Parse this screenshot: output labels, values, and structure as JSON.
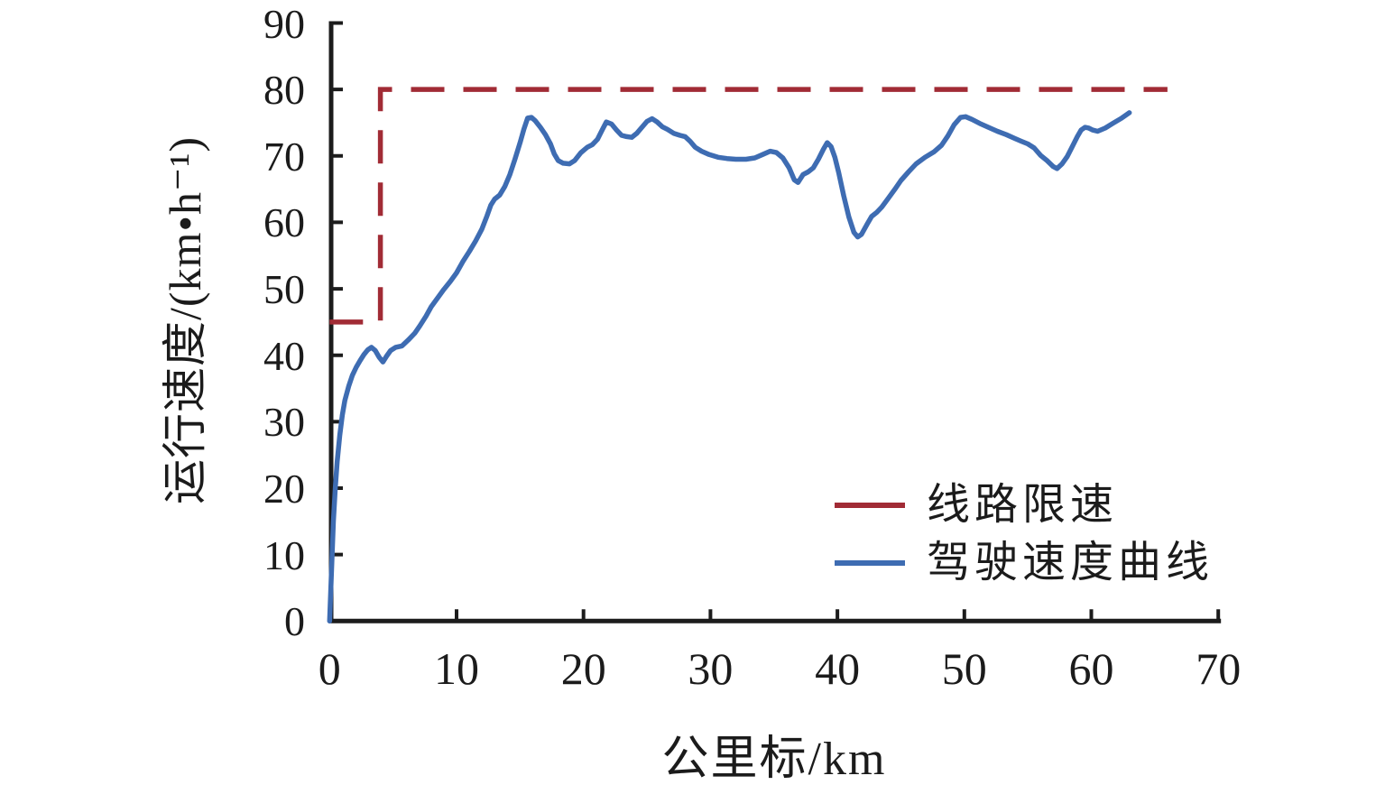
{
  "figure": {
    "background": "#ffffff"
  },
  "colors": {
    "axis": "#1c1c1c",
    "text": "#1b1b1b",
    "limit_line": "#a12b35",
    "speed_curve": "#3e6cb2"
  },
  "chart_data": {
    "type": "line",
    "title": "",
    "xlabel": "公里标/km",
    "ylabel": "运行速度/(km•h⁻¹)",
    "xlim": [
      0,
      70
    ],
    "ylim": [
      0,
      90
    ],
    "x_ticks": [
      0,
      10,
      20,
      30,
      40,
      50,
      60,
      70
    ],
    "y_ticks": [
      0,
      10,
      20,
      30,
      40,
      50,
      60,
      70,
      80,
      90
    ],
    "grid": false,
    "legend_position": "inside-lower-right",
    "series": [
      {
        "name": "线路限速",
        "style": "dashed",
        "color": "#a12b35",
        "points": [
          [
            0,
            45
          ],
          [
            4,
            45
          ],
          [
            4,
            80
          ],
          [
            66,
            80
          ]
        ]
      },
      {
        "name": "驾驶速度曲线",
        "style": "solid",
        "color": "#3e6cb2",
        "points": [
          [
            0,
            0
          ],
          [
            0.1,
            5
          ],
          [
            0.2,
            10
          ],
          [
            0.3,
            15
          ],
          [
            0.45,
            20
          ],
          [
            0.6,
            24
          ],
          [
            0.8,
            28
          ],
          [
            1,
            31
          ],
          [
            1.2,
            33.2
          ],
          [
            1.5,
            35.3
          ],
          [
            1.8,
            37
          ],
          [
            2.1,
            38.2
          ],
          [
            2.4,
            39.2
          ],
          [
            2.7,
            40.1
          ],
          [
            3,
            40.8
          ],
          [
            3.3,
            41.2
          ],
          [
            3.6,
            40.7
          ],
          [
            3.9,
            39.7
          ],
          [
            4.2,
            39
          ],
          [
            4.5,
            39.9
          ],
          [
            4.8,
            40.7
          ],
          [
            5.2,
            41.2
          ],
          [
            5.7,
            41.4
          ],
          [
            6.2,
            42.3
          ],
          [
            6.7,
            43.3
          ],
          [
            7.1,
            44.4
          ],
          [
            7.6,
            45.9
          ],
          [
            8,
            47.3
          ],
          [
            8.5,
            48.6
          ],
          [
            9,
            49.9
          ],
          [
            9.5,
            51.1
          ],
          [
            10,
            52.4
          ],
          [
            10.5,
            54.1
          ],
          [
            11,
            55.6
          ],
          [
            11.5,
            57.2
          ],
          [
            12,
            59
          ],
          [
            12.4,
            61
          ],
          [
            12.7,
            62.6
          ],
          [
            13,
            63.5
          ],
          [
            13.4,
            64.1
          ],
          [
            13.8,
            65.4
          ],
          [
            14.2,
            67.2
          ],
          [
            14.6,
            69.5
          ],
          [
            15,
            72
          ],
          [
            15.3,
            74
          ],
          [
            15.6,
            75.7
          ],
          [
            15.9,
            75.8
          ],
          [
            16.2,
            75.3
          ],
          [
            16.6,
            74.3
          ],
          [
            17,
            73.2
          ],
          [
            17.4,
            71.8
          ],
          [
            17.7,
            70.3
          ],
          [
            18,
            69.3
          ],
          [
            18.4,
            68.9
          ],
          [
            18.9,
            68.8
          ],
          [
            19.3,
            69.3
          ],
          [
            19.8,
            70.5
          ],
          [
            20.3,
            71.3
          ],
          [
            20.7,
            71.7
          ],
          [
            21.1,
            72.5
          ],
          [
            21.5,
            74
          ],
          [
            21.8,
            75.1
          ],
          [
            22.2,
            74.8
          ],
          [
            22.6,
            73.9
          ],
          [
            23,
            73.1
          ],
          [
            23.4,
            72.9
          ],
          [
            23.8,
            72.8
          ],
          [
            24.2,
            73.4
          ],
          [
            24.6,
            74.3
          ],
          [
            25,
            75.2
          ],
          [
            25.4,
            75.6
          ],
          [
            25.8,
            75.1
          ],
          [
            26.2,
            74.4
          ],
          [
            26.6,
            74
          ],
          [
            27.1,
            73.4
          ],
          [
            27.6,
            73.1
          ],
          [
            28,
            72.9
          ],
          [
            28.4,
            72.2
          ],
          [
            28.8,
            71.3
          ],
          [
            29.3,
            70.7
          ],
          [
            29.9,
            70.2
          ],
          [
            30.6,
            69.8
          ],
          [
            31.3,
            69.6
          ],
          [
            32,
            69.5
          ],
          [
            32.8,
            69.5
          ],
          [
            33.5,
            69.7
          ],
          [
            34.1,
            70.2
          ],
          [
            34.7,
            70.7
          ],
          [
            35.2,
            70.5
          ],
          [
            35.7,
            69.7
          ],
          [
            36.2,
            68.2
          ],
          [
            36.6,
            66.4
          ],
          [
            36.9,
            66
          ],
          [
            37.3,
            67.2
          ],
          [
            37.7,
            67.6
          ],
          [
            38.1,
            68.2
          ],
          [
            38.5,
            69.5
          ],
          [
            38.9,
            71
          ],
          [
            39.2,
            72
          ],
          [
            39.5,
            71.4
          ],
          [
            39.8,
            69.8
          ],
          [
            40.1,
            67.5
          ],
          [
            40.5,
            64
          ],
          [
            40.9,
            60.8
          ],
          [
            41.3,
            58.5
          ],
          [
            41.6,
            57.8
          ],
          [
            41.9,
            58.2
          ],
          [
            42.3,
            59.6
          ],
          [
            42.7,
            60.9
          ],
          [
            43.1,
            61.5
          ],
          [
            43.5,
            62.3
          ],
          [
            44,
            63.6
          ],
          [
            44.5,
            64.9
          ],
          [
            45,
            66.3
          ],
          [
            45.6,
            67.6
          ],
          [
            46.2,
            68.8
          ],
          [
            46.9,
            69.8
          ],
          [
            47.6,
            70.6
          ],
          [
            48.2,
            71.6
          ],
          [
            48.7,
            73
          ],
          [
            49.2,
            74.7
          ],
          [
            49.7,
            75.8
          ],
          [
            50.1,
            75.9
          ],
          [
            50.6,
            75.5
          ],
          [
            51.2,
            74.9
          ],
          [
            51.9,
            74.3
          ],
          [
            52.6,
            73.7
          ],
          [
            53.3,
            73.2
          ],
          [
            54,
            72.6
          ],
          [
            54.5,
            72.2
          ],
          [
            55,
            71.8
          ],
          [
            55.5,
            71.2
          ],
          [
            56,
            70.1
          ],
          [
            56.5,
            69.3
          ],
          [
            57,
            68.4
          ],
          [
            57.3,
            68.1
          ],
          [
            57.7,
            68.8
          ],
          [
            58.1,
            69.9
          ],
          [
            58.5,
            71.4
          ],
          [
            58.9,
            72.9
          ],
          [
            59.2,
            73.9
          ],
          [
            59.5,
            74.3
          ],
          [
            59.8,
            74.2
          ],
          [
            60.1,
            73.9
          ],
          [
            60.5,
            73.7
          ],
          [
            61.1,
            74.2
          ],
          [
            61.7,
            74.9
          ],
          [
            62.4,
            75.7
          ],
          [
            63,
            76.5
          ]
        ]
      }
    ]
  },
  "legend": {
    "items": [
      {
        "label": "线路限速"
      },
      {
        "label": "驾驶速度曲线"
      }
    ]
  }
}
